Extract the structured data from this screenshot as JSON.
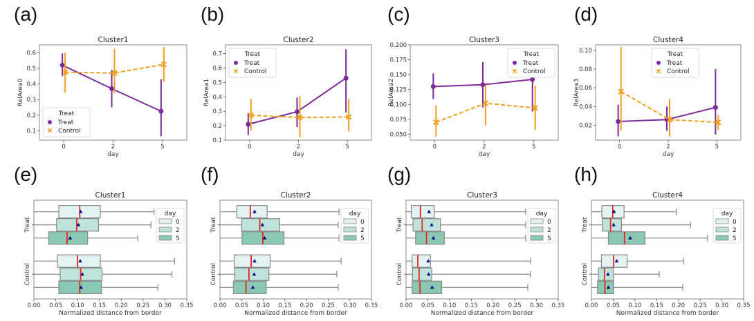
{
  "figure": {
    "colors": {
      "treat": "#7d2a9c",
      "control": "#f0a020",
      "median": "#e8231e",
      "mean_marker": "#0a0a8a",
      "box_day0": "#e3f2f2",
      "box_day2": "#bfe3da",
      "box_day5": "#8bc8b3",
      "box_edge": "#888888",
      "frame": "#888888"
    }
  },
  "chart_data": [
    {
      "panel": "(a)",
      "type": "line",
      "title": "Cluster1",
      "xlabel": "day",
      "ylabel": "RelArea0",
      "categories": [
        "0",
        "2",
        "5"
      ],
      "ylim": [
        0.04,
        0.65
      ],
      "yticks": [
        0.1,
        0.2,
        0.3,
        0.4,
        0.5,
        0.6
      ],
      "ytick_labels": [
        "0.1",
        "0.2",
        "0.3",
        "0.4",
        "0.5",
        "0.6"
      ],
      "legend": {
        "title": "Treat",
        "entries": [
          "Treat",
          "Control"
        ],
        "position": "lower-left"
      },
      "series": [
        {
          "name": "Treat",
          "marker": "circle",
          "linestyle": "solid",
          "values": [
            0.52,
            0.37,
            0.225
          ],
          "ci_low": [
            0.45,
            0.25,
            0.065
          ],
          "ci_high": [
            0.595,
            0.49,
            0.43
          ]
        },
        {
          "name": "Control",
          "marker": "x",
          "linestyle": "dashed",
          "values": [
            0.475,
            0.47,
            0.525
          ],
          "ci_low": [
            0.345,
            0.34,
            0.415
          ],
          "ci_high": [
            0.6,
            0.625,
            0.635
          ]
        }
      ]
    },
    {
      "panel": "(b)",
      "type": "line",
      "title": "Cluster2",
      "xlabel": "day",
      "ylabel": "RelArea1",
      "categories": [
        "0",
        "2",
        "5"
      ],
      "ylim": [
        0.1,
        0.76
      ],
      "yticks": [
        0.1,
        0.2,
        0.3,
        0.4,
        0.5,
        0.6,
        0.7
      ],
      "ytick_labels": [
        "0.1",
        "0.2",
        "0.3",
        "0.4",
        "0.5",
        "0.6",
        "0.7"
      ],
      "legend": {
        "title": "Treat",
        "entries": [
          "Treat",
          "Control"
        ],
        "position": "upper-left"
      },
      "series": [
        {
          "name": "Treat",
          "marker": "circle",
          "linestyle": "solid",
          "values": [
            0.21,
            0.297,
            0.53
          ],
          "ci_low": [
            0.135,
            0.19,
            0.29
          ],
          "ci_high": [
            0.285,
            0.395,
            0.73
          ]
        },
        {
          "name": "Control",
          "marker": "x",
          "linestyle": "dashed",
          "values": [
            0.272,
            0.257,
            0.26
          ],
          "ci_low": [
            0.165,
            0.12,
            0.16
          ],
          "ci_high": [
            0.385,
            0.405,
            0.385
          ]
        }
      ]
    },
    {
      "panel": "(c)",
      "type": "line",
      "title": "Cluster3",
      "xlabel": "day",
      "ylabel": "RelArea2",
      "categories": [
        "0",
        "2",
        "5"
      ],
      "ylim": [
        0.04,
        0.2
      ],
      "yticks": [
        0.05,
        0.075,
        0.1,
        0.125,
        0.15,
        0.175,
        0.2
      ],
      "ytick_labels": [
        "0.050",
        "0.075",
        "0.100",
        "0.125",
        "0.150",
        "0.175",
        "0.200"
      ],
      "legend": {
        "title": "Treat",
        "entries": [
          "Treat",
          "Control"
        ],
        "position": "upper-right"
      },
      "series": [
        {
          "name": "Treat",
          "marker": "circle",
          "linestyle": "solid",
          "values": [
            0.13,
            0.133,
            0.142
          ],
          "ci_low": [
            0.109,
            0.095,
            0.088
          ],
          "ci_high": [
            0.152,
            0.171,
            0.143
          ]
        },
        {
          "name": "Control",
          "marker": "x",
          "linestyle": "dashed",
          "values": [
            0.07,
            0.102,
            0.094
          ],
          "ci_low": [
            0.046,
            0.065,
            0.057
          ],
          "ci_high": [
            0.098,
            0.133,
            0.131
          ]
        }
      ]
    },
    {
      "panel": "(d)",
      "type": "line",
      "title": "Cluster4",
      "xlabel": "day",
      "ylabel": "RelArea3",
      "categories": [
        "0",
        "2",
        "5"
      ],
      "ylim": [
        0.004,
        0.106
      ],
      "yticks": [
        0.02,
        0.04,
        0.06,
        0.08,
        0.1
      ],
      "ytick_labels": [
        "0.02",
        "0.04",
        "0.06",
        "0.08",
        "0.10"
      ],
      "legend": {
        "title": "Treat",
        "entries": [
          "Treat",
          "Control"
        ],
        "position": "upper-center"
      },
      "series": [
        {
          "name": "Treat",
          "marker": "circle",
          "linestyle": "solid",
          "values": [
            0.024,
            0.026,
            0.039
          ],
          "ci_low": [
            0.008,
            0.014,
            0.01
          ],
          "ci_high": [
            0.042,
            0.04,
            0.08
          ]
        },
        {
          "name": "Control",
          "marker": "x",
          "linestyle": "dashed",
          "values": [
            0.056,
            0.026,
            0.023
          ],
          "ci_low": [
            0.014,
            0.008,
            0.015
          ],
          "ci_high": [
            0.104,
            0.048,
            0.031
          ]
        }
      ]
    },
    {
      "panel": "(e)",
      "type": "box",
      "title": "Cluster1",
      "xlabel": "Normalized distance from border",
      "ylabel": "",
      "groups": [
        "Treat",
        "Control"
      ],
      "hue": [
        "0",
        "2",
        "5"
      ],
      "xlim": [
        0,
        0.35
      ],
      "xticks": [
        0,
        0.05,
        0.1,
        0.15,
        0.2,
        0.25,
        0.3,
        0.35
      ],
      "xtick_labels": [
        "0.00",
        "0.05",
        "0.10",
        "0.15",
        "0.20",
        "0.25",
        "0.30",
        "0.35"
      ],
      "legend": {
        "title": "day",
        "entries": [
          "0",
          "2",
          "5"
        ],
        "position": "upper-right"
      },
      "boxes": [
        {
          "group": "Treat",
          "day": "0",
          "whislo": 0,
          "q1": 0.057,
          "med": 0.105,
          "mean": 0.107,
          "q3": 0.152,
          "whishi": 0.275
        },
        {
          "group": "Treat",
          "day": "2",
          "whislo": 0,
          "q1": 0.052,
          "med": 0.098,
          "mean": 0.102,
          "q3": 0.148,
          "whishi": 0.268
        },
        {
          "group": "Treat",
          "day": "5",
          "whislo": 0,
          "q1": 0.034,
          "med": 0.076,
          "mean": 0.083,
          "q3": 0.123,
          "whishi": 0.238
        },
        {
          "group": "Control",
          "day": "0",
          "whislo": 0,
          "q1": 0.054,
          "med": 0.1,
          "mean": 0.106,
          "q3": 0.152,
          "whishi": 0.322
        },
        {
          "group": "Control",
          "day": "2",
          "whislo": 0,
          "q1": 0.06,
          "med": 0.107,
          "mean": 0.111,
          "q3": 0.156,
          "whishi": 0.316
        },
        {
          "group": "Control",
          "day": "5",
          "whislo": 0,
          "q1": 0.057,
          "med": 0.105,
          "mean": 0.108,
          "q3": 0.155,
          "whishi": 0.284
        }
      ]
    },
    {
      "panel": "(f)",
      "type": "box",
      "title": "Cluster2",
      "xlabel": "Normalized distance from border",
      "ylabel": "",
      "groups": [
        "Treat",
        "Control"
      ],
      "hue": [
        "0",
        "2",
        "5"
      ],
      "xlim": [
        0,
        0.35
      ],
      "xticks": [
        0,
        0.05,
        0.1,
        0.15,
        0.2,
        0.25,
        0.3,
        0.35
      ],
      "xtick_labels": [
        "0.00",
        "0.05",
        "0.10",
        "0.15",
        "0.20",
        "0.25",
        "0.30",
        "0.35"
      ],
      "legend": {
        "title": "day",
        "entries": [
          "0",
          "2",
          "5"
        ],
        "position": "upper-right"
      },
      "boxes": [
        {
          "group": "Treat",
          "day": "0",
          "whislo": 0,
          "q1": 0.039,
          "med": 0.07,
          "mean": 0.08,
          "q3": 0.109,
          "whishi": 0.275
        },
        {
          "group": "Treat",
          "day": "2",
          "whislo": 0,
          "q1": 0.05,
          "med": 0.092,
          "mean": 0.098,
          "q3": 0.138,
          "whishi": 0.273
        },
        {
          "group": "Treat",
          "day": "5",
          "whislo": 0,
          "q1": 0.051,
          "med": 0.099,
          "mean": 0.103,
          "q3": 0.148,
          "whishi": 0.275
        },
        {
          "group": "Control",
          "day": "0",
          "whislo": 0,
          "q1": 0.033,
          "med": 0.072,
          "mean": 0.08,
          "q3": 0.116,
          "whishi": 0.28
        },
        {
          "group": "Control",
          "day": "2",
          "whislo": 0,
          "q1": 0.034,
          "med": 0.067,
          "mean": 0.079,
          "q3": 0.113,
          "whishi": 0.27
        },
        {
          "group": "Control",
          "day": "5",
          "whislo": 0,
          "q1": 0.031,
          "med": 0.06,
          "mean": 0.076,
          "q3": 0.107,
          "whishi": 0.273
        }
      ]
    },
    {
      "panel": "(g)",
      "type": "box",
      "title": "Cluster3",
      "xlabel": "Normalized distance from border",
      "ylabel": "",
      "groups": [
        "Treat",
        "Control"
      ],
      "hue": [
        "0",
        "2",
        "5"
      ],
      "xlim": [
        0,
        0.35
      ],
      "xticks": [
        0,
        0.05,
        0.1,
        0.15,
        0.2,
        0.25,
        0.3,
        0.35
      ],
      "xtick_labels": [
        "0.00",
        "0.05",
        "0.10",
        "0.15",
        "0.20",
        "0.25",
        "0.30",
        "0.35"
      ],
      "legend": {
        "title": "day",
        "entries": [
          "0",
          "2",
          "5"
        ],
        "position": "upper-right"
      },
      "boxes": [
        {
          "group": "Treat",
          "day": "0",
          "whislo": 0,
          "q1": 0.012,
          "med": 0.033,
          "mean": 0.053,
          "q3": 0.065,
          "whishi": 0.275
        },
        {
          "group": "Treat",
          "day": "2",
          "whislo": 0,
          "q1": 0.016,
          "med": 0.037,
          "mean": 0.059,
          "q3": 0.079,
          "whishi": 0.275
        },
        {
          "group": "Treat",
          "day": "5",
          "whislo": 0,
          "q1": 0.022,
          "med": 0.047,
          "mean": 0.063,
          "q3": 0.088,
          "whishi": 0.275
        },
        {
          "group": "Control",
          "day": "0",
          "whislo": 0,
          "q1": 0.014,
          "med": 0.027,
          "mean": 0.051,
          "q3": 0.056,
          "whishi": 0.287
        },
        {
          "group": "Control",
          "day": "2",
          "whislo": 0,
          "q1": 0.015,
          "med": 0.03,
          "mean": 0.052,
          "q3": 0.059,
          "whishi": 0.286
        },
        {
          "group": "Control",
          "day": "5",
          "whislo": 0,
          "q1": 0.014,
          "med": 0.032,
          "mean": 0.06,
          "q3": 0.082,
          "whishi": 0.28
        }
      ]
    },
    {
      "panel": "(h)",
      "type": "box",
      "title": "Cluster4",
      "xlabel": "Normalized distance from border",
      "ylabel": "",
      "groups": [
        "Treat",
        "Control"
      ],
      "hue": [
        "0",
        "2",
        "5"
      ],
      "xlim": [
        0,
        0.35
      ],
      "xticks": [
        0,
        0.05,
        0.1,
        0.15,
        0.2,
        0.25,
        0.3,
        0.35
      ],
      "xtick_labels": [
        "0.00",
        "0.05",
        "0.10",
        "0.15",
        "0.20",
        "0.25",
        "0.30",
        "0.35"
      ],
      "legend": {
        "title": "day",
        "entries": [
          "0",
          "2",
          "5"
        ],
        "position": "upper-right"
      },
      "boxes": [
        {
          "group": "Treat",
          "day": "0",
          "whislo": 0,
          "q1": 0.024,
          "med": 0.049,
          "mean": 0.052,
          "q3": 0.075,
          "whishi": 0.195
        },
        {
          "group": "Treat",
          "day": "2",
          "whislo": 0,
          "q1": 0.025,
          "med": 0.044,
          "mean": 0.051,
          "q3": 0.069,
          "whishi": 0.228
        },
        {
          "group": "Treat",
          "day": "5",
          "whislo": 0,
          "q1": 0.039,
          "med": 0.076,
          "mean": 0.089,
          "q3": 0.123,
          "whishi": 0.267
        },
        {
          "group": "Control",
          "day": "0",
          "whislo": 0,
          "q1": 0.023,
          "med": 0.051,
          "mean": 0.058,
          "q3": 0.082,
          "whishi": 0.212
        },
        {
          "group": "Control",
          "day": "2",
          "whislo": 0,
          "q1": 0.016,
          "med": 0.03,
          "mean": 0.038,
          "q3": 0.051,
          "whishi": 0.156
        },
        {
          "group": "Control",
          "day": "5",
          "whislo": 0,
          "q1": 0.014,
          "med": 0.031,
          "mean": 0.039,
          "q3": 0.051,
          "whishi": 0.21
        }
      ]
    }
  ]
}
